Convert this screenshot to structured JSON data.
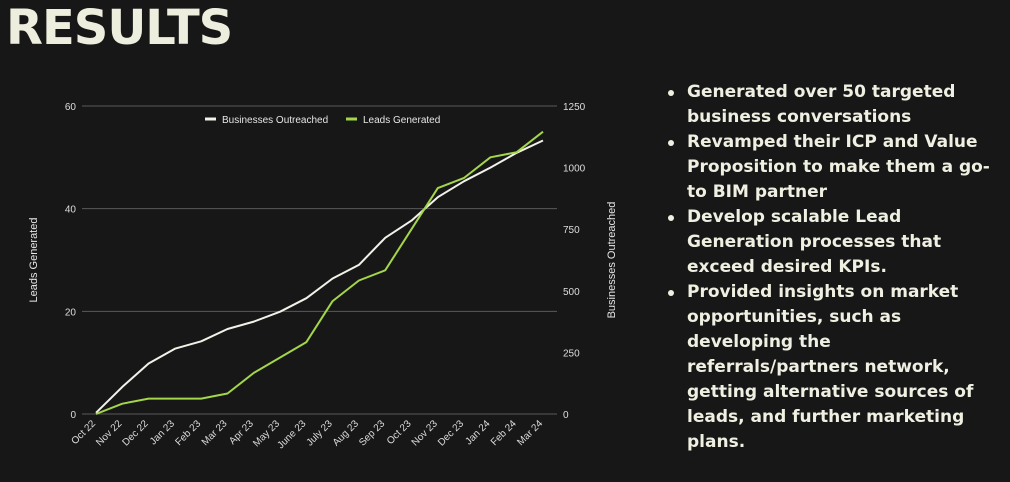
{
  "title": "RESULTS",
  "bullets": [
    "Generated over 50 targeted business conversations",
    "Revamped their ICP and Value Proposition to make them a go-to BIM partner",
    "Develop scalable Lead Generation processes that exceed desired KPIs.",
    "Provided insights on market opportunities, such as developing the referrals/partners network, getting alternative sources of leads, and further marketing plans."
  ],
  "colors": {
    "background": "#171717",
    "businesses_line": "#f2f2ea",
    "leads_line": "#a3d64a",
    "grid": "#5a5a5a"
  },
  "chart_data": {
    "type": "line",
    "title": "",
    "categories": [
      "Oct 22",
      "Nov 22",
      "Dec 22",
      "Jan 23",
      "Feb 23",
      "Mar 23",
      "Apr 23",
      "May 23",
      "June 23",
      "July 23",
      "Aug 23",
      "Sep 23",
      "Oct 23",
      "Nov 23",
      "Dec 23",
      "Jan 24",
      "Feb 24",
      "Mar 24"
    ],
    "y_left": {
      "label": "Leads Generated",
      "range": [
        0,
        60
      ],
      "ticks": [
        0,
        20,
        40,
        60
      ]
    },
    "y_right": {
      "label": "Businesses Outreached",
      "range": [
        0,
        1250
      ],
      "ticks": [
        0,
        250,
        500,
        750,
        1000,
        1250
      ]
    },
    "legend_position": "top",
    "grid": true,
    "series": [
      {
        "name": "Businesses Outreached",
        "axis": "right",
        "color": "#f2f2ea",
        "values": [
          5,
          110,
          205,
          265,
          295,
          345,
          375,
          415,
          470,
          550,
          605,
          715,
          785,
          880,
          945,
          1000,
          1060,
          1110
        ]
      },
      {
        "name": "Leads Generated",
        "axis": "left",
        "color": "#a3d64a",
        "values": [
          0,
          2,
          3,
          3,
          3,
          4,
          8,
          11,
          14,
          22,
          26,
          28,
          36,
          44,
          46,
          50,
          51,
          55
        ]
      }
    ]
  }
}
